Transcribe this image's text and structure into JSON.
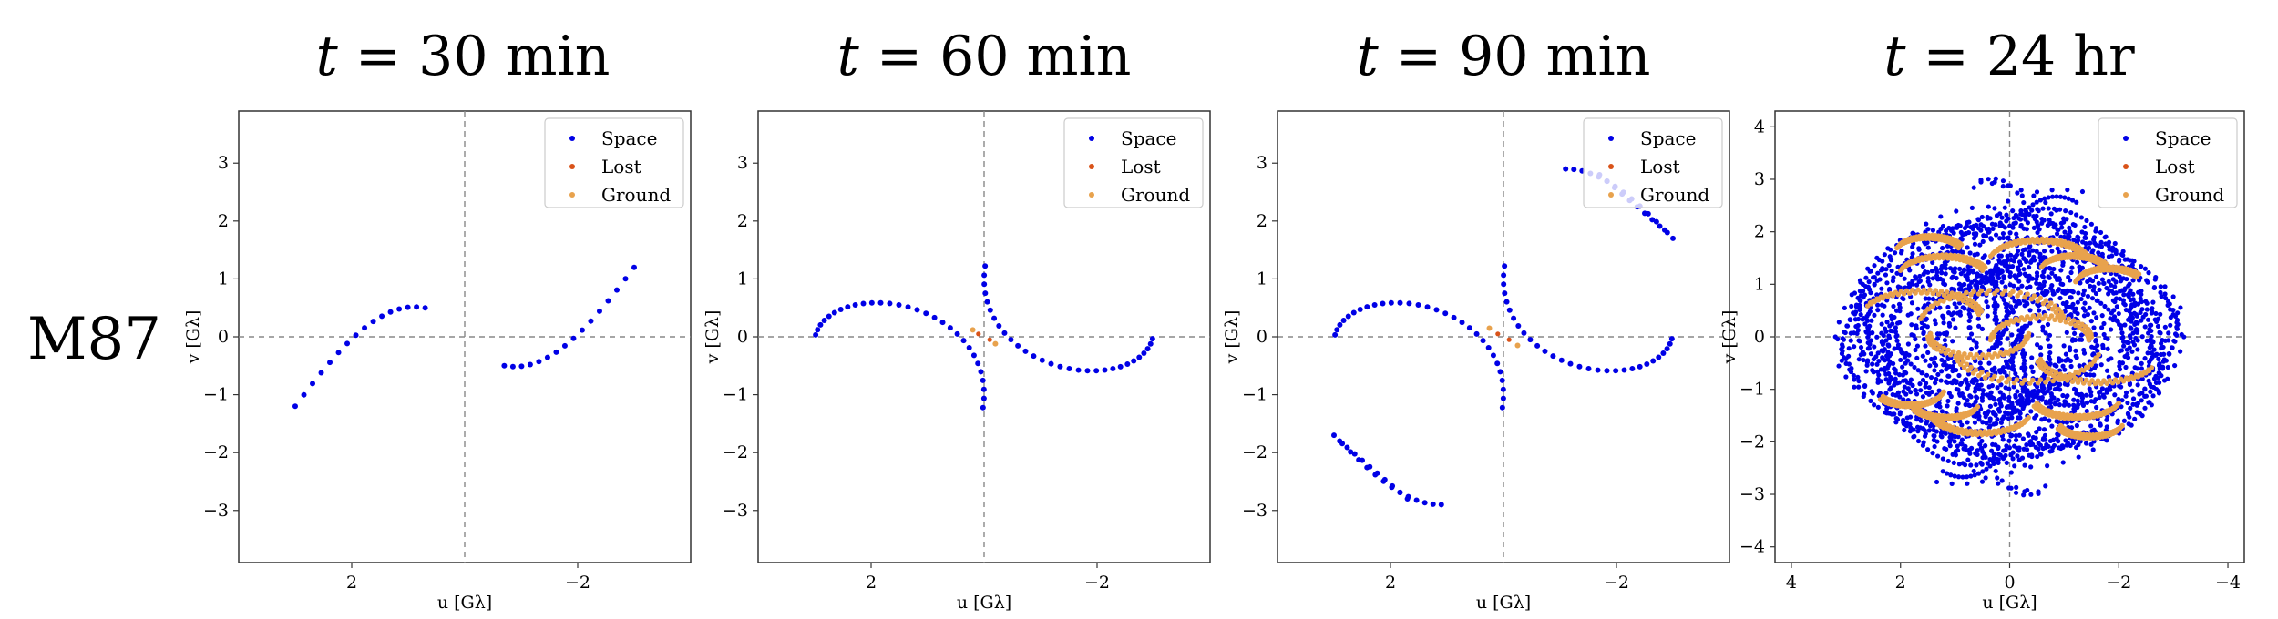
{
  "figure": {
    "row_label": "M87"
  },
  "colors": {
    "space": "#0000e6",
    "lost": "#d95319",
    "ground": "#e8a24d",
    "axes": "#333333",
    "reference_line": "#888888"
  },
  "chart_data": [
    {
      "type": "scatter",
      "title": "t = 30 min",
      "title_var": "t",
      "title_rest": "= 30 min",
      "xlabel": "u [Gλ]",
      "ylabel": "v [Gλ]",
      "xlim": [
        4,
        -4
      ],
      "ylim": [
        -3.9,
        3.9
      ],
      "xticks": [
        2,
        -2
      ],
      "xtick_labels": [
        "2",
        "−2"
      ],
      "yticks": [
        -3,
        -2,
        -1,
        0,
        1,
        2,
        3
      ],
      "ytick_labels": [
        "−3",
        "−2",
        "−1",
        "0",
        "1",
        "2",
        "3"
      ],
      "legend": [
        "Space",
        "Lost",
        "Ground"
      ],
      "legend_position": "top-right",
      "space_points": "arc30",
      "lost": [],
      "ground": []
    },
    {
      "type": "scatter",
      "title": "t = 60 min",
      "title_var": "t",
      "title_rest": "= 60 min",
      "xlabel": "u [Gλ]",
      "ylabel": "v [Gλ]",
      "xlim": [
        4,
        -4
      ],
      "ylim": [
        -3.9,
        3.9
      ],
      "xticks": [
        2,
        -2
      ],
      "xtick_labels": [
        "2",
        "−2"
      ],
      "yticks": [
        -3,
        -2,
        -1,
        0,
        1,
        2,
        3
      ],
      "ytick_labels": [
        "−3",
        "−2",
        "−1",
        "0",
        "1",
        "2",
        "3"
      ],
      "legend": [
        "Space",
        "Lost",
        "Ground"
      ],
      "legend_position": "top-right",
      "space_points": "arc60",
      "lost": [
        [
          0.1,
          0.05
        ],
        [
          -0.1,
          -0.05
        ]
      ],
      "ground": [
        [
          0.2,
          0.12
        ],
        [
          -0.2,
          -0.12
        ]
      ]
    },
    {
      "type": "scatter",
      "title": "t = 90 min",
      "title_var": "t",
      "title_rest": "= 90 min",
      "xlabel": "u [Gλ]",
      "ylabel": "v [Gλ]",
      "xlim": [
        4,
        -4
      ],
      "ylim": [
        -3.9,
        3.9
      ],
      "xticks": [
        2,
        -2
      ],
      "xtick_labels": [
        "2",
        "−2"
      ],
      "yticks": [
        -3,
        -2,
        -1,
        0,
        1,
        2,
        3
      ],
      "ytick_labels": [
        "−3",
        "−2",
        "−1",
        "0",
        "1",
        "2",
        "3"
      ],
      "legend": [
        "Space",
        "Lost",
        "Ground"
      ],
      "legend_position": "top-right",
      "space_points": "arc90",
      "lost": [
        [
          0.1,
          0.05
        ],
        [
          -0.1,
          -0.05
        ]
      ],
      "ground": [
        [
          0.25,
          0.15
        ],
        [
          -0.25,
          -0.15
        ]
      ]
    },
    {
      "type": "scatter",
      "title": "t = 24 hr",
      "title_var": "t",
      "title_rest": "= 24 hr",
      "xlabel": "u [Gλ]",
      "ylabel": "v [Gλ]",
      "xlim": [
        4.3,
        -4.3
      ],
      "ylim": [
        -4.3,
        4.3
      ],
      "xticks": [
        4,
        2,
        0,
        -2,
        -4
      ],
      "xtick_labels": [
        "4",
        "2",
        "0",
        "−2",
        "−4"
      ],
      "yticks": [
        -4,
        -3,
        -2,
        -1,
        0,
        1,
        2,
        3,
        4
      ],
      "ytick_labels": [
        "−4",
        "−3",
        "−2",
        "−1",
        "0",
        "1",
        "2",
        "3",
        "4"
      ],
      "legend": [
        "Space",
        "Lost",
        "Ground"
      ],
      "legend_position": "top-right",
      "space_points": "cloud24",
      "lost": [],
      "ground_arcs": [
        {
          "cx": 1.2,
          "cy": 1.2,
          "r": 0.8,
          "from": 20,
          "to": 160
        },
        {
          "cx": 1.6,
          "cy": 0.4,
          "r": 1.1,
          "from": 30,
          "to": 170
        },
        {
          "cx": 0.3,
          "cy": 0.3,
          "r": 1.3,
          "from": 10,
          "to": 170
        },
        {
          "cx": -0.6,
          "cy": 0.0,
          "r": 0.9,
          "from": 0,
          "to": 180
        },
        {
          "cx": -1.2,
          "cy": 1.3,
          "r": 0.6,
          "from": 20,
          "to": 160
        },
        {
          "cx": 0.5,
          "cy": -1.4,
          "r": 0.9,
          "from": 200,
          "to": 340
        },
        {
          "cx": -1.5,
          "cy": -1.6,
          "r": 0.6,
          "from": 200,
          "to": 340
        },
        {
          "cx": 1.8,
          "cy": -1.0,
          "r": 0.6,
          "from": 190,
          "to": 330
        }
      ]
    }
  ]
}
